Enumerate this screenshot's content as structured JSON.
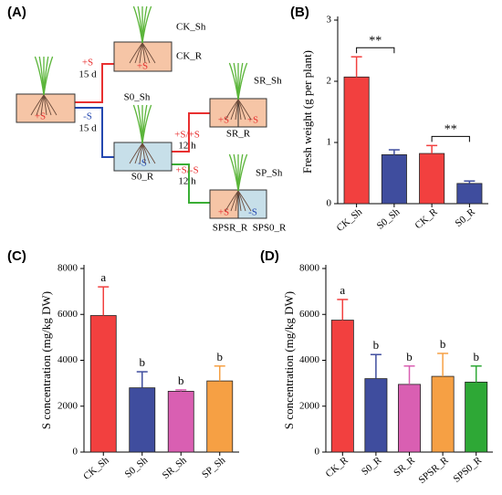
{
  "diagram": {
    "panel": "(A)",
    "start": {
      "box": [
        "+S"
      ]
    },
    "edges": [
      {
        "label": "+S",
        "duration": "15 d"
      },
      {
        "label": "-S",
        "duration": "15 d"
      },
      {
        "label": "+S/+S",
        "duration": "12 h"
      },
      {
        "label": "+S/-S",
        "duration": "12 h"
      }
    ],
    "nodes": [
      {
        "shoot": "CK_Sh",
        "box": [
          "+S"
        ],
        "root": "CK_R"
      },
      {
        "shoot": "S0_Sh",
        "box": [
          "-S"
        ],
        "root": "S0_R"
      },
      {
        "shoot": "SR_Sh",
        "box": [
          "+S",
          "+S"
        ],
        "root": "SR_R"
      },
      {
        "shoot": "SP_Sh",
        "box": [
          "+S",
          "-S"
        ],
        "roots": [
          "SPSR_R",
          "SPS0_R"
        ]
      }
    ]
  },
  "chart_data": [
    {
      "type": "bar",
      "panel": "(B)",
      "y_label": "Fresh weight  (g per plant)",
      "categories": [
        "CK_Sh",
        "S0_Sh",
        "CK_R",
        "S0_R"
      ],
      "values": [
        2.07,
        0.8,
        0.82,
        0.33
      ],
      "errors": [
        0.33,
        0.08,
        0.13,
        0.04
      ],
      "colors": [
        "#f2403f",
        "#3f4d9e",
        "#f2403f",
        "#3f4d9e"
      ],
      "ylim": [
        0,
        3
      ],
      "yticks": [
        0,
        1,
        2,
        3
      ],
      "significance": [
        {
          "text": "**",
          "between": [
            "CK_Sh",
            "S0_Sh"
          ]
        },
        {
          "text": "**",
          "between": [
            "CK_R",
            "S0_R"
          ]
        }
      ]
    },
    {
      "type": "bar",
      "panel": "(C)",
      "y_label": "S concentration (mg/kg DW)",
      "categories": [
        "CK_Sh",
        "S0_Sh",
        "SR_Sh",
        "SP_Sh"
      ],
      "values": [
        5950,
        2800,
        2650,
        3100
      ],
      "errors": [
        1250,
        700,
        60,
        650
      ],
      "colors": [
        "#f2403f",
        "#3f4d9e",
        "#d95fb2",
        "#f6a044"
      ],
      "ylim": [
        0,
        8000
      ],
      "yticks": [
        0,
        2000,
        4000,
        6000,
        8000
      ],
      "letters": [
        "a",
        "b",
        "b",
        "b"
      ]
    },
    {
      "type": "bar",
      "panel": "(D)",
      "y_label": "S concentration (mg/kg DW)",
      "categories": [
        "CK_R",
        "S0_R",
        "SR_R",
        "SPSR_R",
        "SPS0_R"
      ],
      "values": [
        5750,
        3200,
        2950,
        3300,
        3050
      ],
      "errors": [
        900,
        1050,
        800,
        1000,
        700
      ],
      "colors": [
        "#f2403f",
        "#3f4d9e",
        "#d95fb2",
        "#f6a044",
        "#2ea836"
      ],
      "ylim": [
        0,
        8000
      ],
      "yticks": [
        0,
        2000,
        4000,
        6000,
        8000
      ],
      "letters": [
        "a",
        "b",
        "b",
        "b",
        "b"
      ]
    }
  ]
}
